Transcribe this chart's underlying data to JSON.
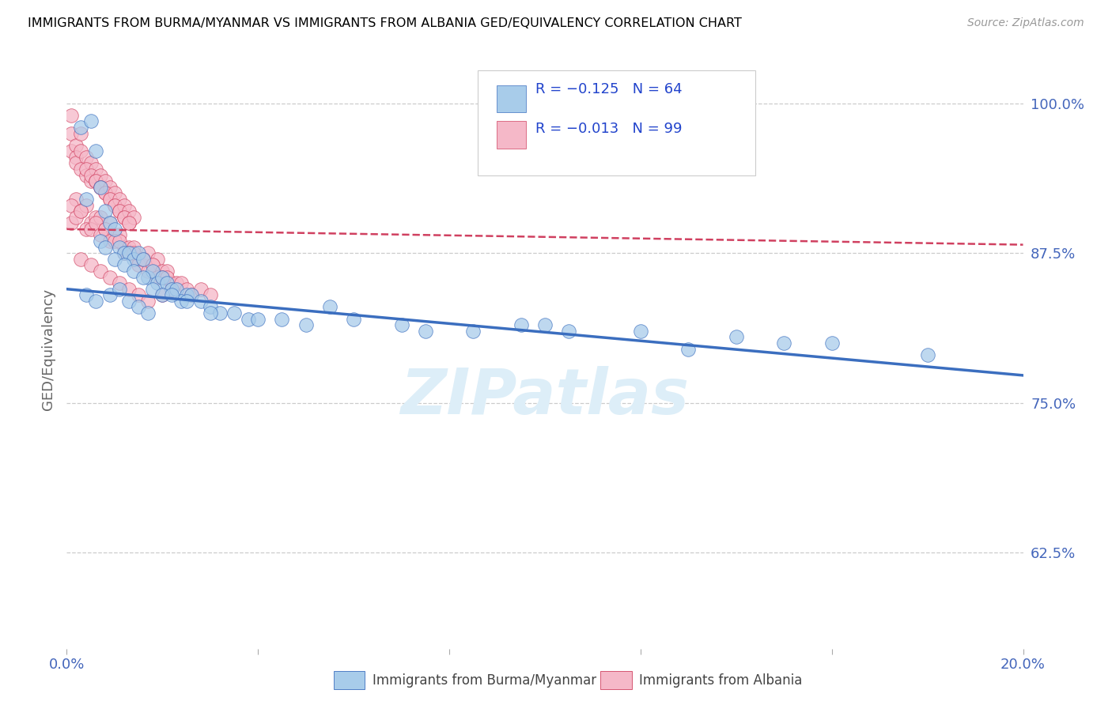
{
  "title": "IMMIGRANTS FROM BURMA/MYANMAR VS IMMIGRANTS FROM ALBANIA GED/EQUIVALENCY CORRELATION CHART",
  "source": "Source: ZipAtlas.com",
  "ylabel": "GED/Equivalency",
  "yticks": [
    0.625,
    0.75,
    0.875,
    1.0
  ],
  "ytick_labels": [
    "62.5%",
    "75.0%",
    "87.5%",
    "100.0%"
  ],
  "xmin": 0.0,
  "xmax": 0.2,
  "ymin": 0.545,
  "ymax": 1.045,
  "legend_r1": "-0.125",
  "legend_n1": "64",
  "legend_r2": "-0.013",
  "legend_n2": "99",
  "legend_label1": "Immigrants from Burma/Myanmar",
  "legend_label2": "Immigrants from Albania",
  "color_blue": "#A8CCEA",
  "color_pink": "#F5B8C8",
  "color_blue_line": "#3B6EBF",
  "color_pink_line": "#D04060",
  "watermark": "ZIPatlas",
  "blue_scatter_x": [
    0.003,
    0.005,
    0.006,
    0.007,
    0.004,
    0.008,
    0.009,
    0.01,
    0.007,
    0.011,
    0.012,
    0.01,
    0.008,
    0.013,
    0.014,
    0.012,
    0.015,
    0.016,
    0.014,
    0.017,
    0.018,
    0.016,
    0.019,
    0.02,
    0.018,
    0.021,
    0.022,
    0.02,
    0.023,
    0.025,
    0.024,
    0.026,
    0.028,
    0.03,
    0.032,
    0.035,
    0.038,
    0.004,
    0.006,
    0.009,
    0.011,
    0.013,
    0.015,
    0.017,
    0.022,
    0.025,
    0.03,
    0.04,
    0.045,
    0.05,
    0.06,
    0.07,
    0.085,
    0.1,
    0.12,
    0.14,
    0.16,
    0.18,
    0.105,
    0.095,
    0.075,
    0.055,
    0.15,
    0.13
  ],
  "blue_scatter_y": [
    0.98,
    0.985,
    0.96,
    0.93,
    0.92,
    0.91,
    0.9,
    0.895,
    0.885,
    0.88,
    0.875,
    0.87,
    0.88,
    0.875,
    0.87,
    0.865,
    0.875,
    0.87,
    0.86,
    0.855,
    0.86,
    0.855,
    0.85,
    0.855,
    0.845,
    0.85,
    0.845,
    0.84,
    0.845,
    0.84,
    0.835,
    0.84,
    0.835,
    0.83,
    0.825,
    0.825,
    0.82,
    0.84,
    0.835,
    0.84,
    0.845,
    0.835,
    0.83,
    0.825,
    0.84,
    0.835,
    0.825,
    0.82,
    0.82,
    0.815,
    0.82,
    0.815,
    0.81,
    0.815,
    0.81,
    0.805,
    0.8,
    0.79,
    0.81,
    0.815,
    0.81,
    0.83,
    0.8,
    0.795
  ],
  "pink_scatter_x": [
    0.001,
    0.001,
    0.002,
    0.001,
    0.002,
    0.003,
    0.002,
    0.003,
    0.004,
    0.003,
    0.004,
    0.005,
    0.004,
    0.005,
    0.006,
    0.005,
    0.006,
    0.007,
    0.006,
    0.007,
    0.008,
    0.007,
    0.008,
    0.009,
    0.008,
    0.009,
    0.01,
    0.009,
    0.01,
    0.011,
    0.01,
    0.011,
    0.012,
    0.011,
    0.012,
    0.013,
    0.012,
    0.013,
    0.014,
    0.013,
    0.001,
    0.002,
    0.001,
    0.003,
    0.002,
    0.004,
    0.003,
    0.005,
    0.004,
    0.006,
    0.005,
    0.007,
    0.006,
    0.008,
    0.007,
    0.009,
    0.008,
    0.01,
    0.009,
    0.011,
    0.01,
    0.012,
    0.011,
    0.013,
    0.012,
    0.014,
    0.013,
    0.015,
    0.014,
    0.016,
    0.015,
    0.017,
    0.016,
    0.018,
    0.017,
    0.019,
    0.018,
    0.02,
    0.019,
    0.021,
    0.02,
    0.022,
    0.021,
    0.023,
    0.022,
    0.024,
    0.025,
    0.026,
    0.028,
    0.03,
    0.003,
    0.005,
    0.007,
    0.009,
    0.011,
    0.013,
    0.015,
    0.017,
    0.02
  ],
  "pink_scatter_y": [
    0.96,
    0.975,
    0.965,
    0.99,
    0.955,
    0.975,
    0.95,
    0.96,
    0.955,
    0.945,
    0.94,
    0.95,
    0.945,
    0.935,
    0.945,
    0.94,
    0.935,
    0.94,
    0.935,
    0.93,
    0.935,
    0.93,
    0.925,
    0.93,
    0.925,
    0.92,
    0.925,
    0.92,
    0.915,
    0.92,
    0.915,
    0.91,
    0.915,
    0.91,
    0.905,
    0.91,
    0.905,
    0.9,
    0.905,
    0.9,
    0.9,
    0.92,
    0.915,
    0.91,
    0.905,
    0.915,
    0.91,
    0.9,
    0.895,
    0.905,
    0.895,
    0.905,
    0.9,
    0.895,
    0.89,
    0.9,
    0.895,
    0.89,
    0.885,
    0.89,
    0.885,
    0.88,
    0.885,
    0.88,
    0.875,
    0.88,
    0.875,
    0.87,
    0.875,
    0.87,
    0.865,
    0.875,
    0.87,
    0.865,
    0.86,
    0.87,
    0.865,
    0.86,
    0.855,
    0.86,
    0.855,
    0.85,
    0.855,
    0.85,
    0.845,
    0.85,
    0.845,
    0.84,
    0.845,
    0.84,
    0.87,
    0.865,
    0.86,
    0.855,
    0.85,
    0.845,
    0.84,
    0.835,
    0.84
  ]
}
